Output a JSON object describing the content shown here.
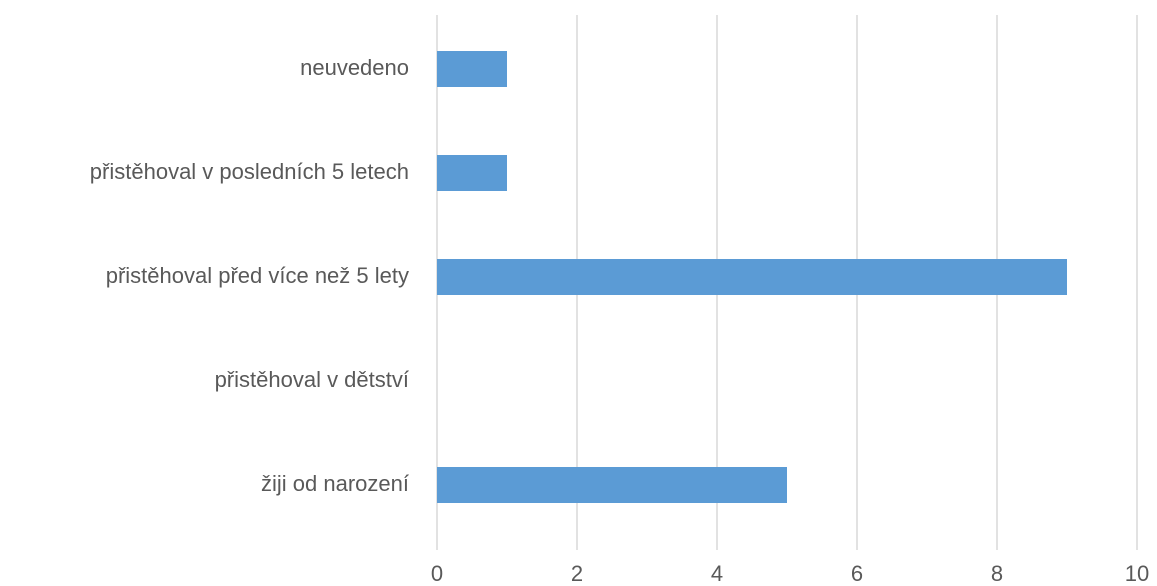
{
  "chart_data": {
    "type": "barh",
    "categories": [
      "neuvedeno",
      "přistěhoval v posledních 5 letech",
      "přistěhoval před více než 5 lety",
      "přistěhoval v dětství",
      "žiji od narození"
    ],
    "values": [
      1,
      1,
      9,
      0,
      5
    ],
    "color": "#5b9bd5",
    "xlim": [
      0,
      10
    ],
    "xticks": [
      0,
      2,
      4,
      6,
      8,
      10
    ],
    "grid": true
  }
}
